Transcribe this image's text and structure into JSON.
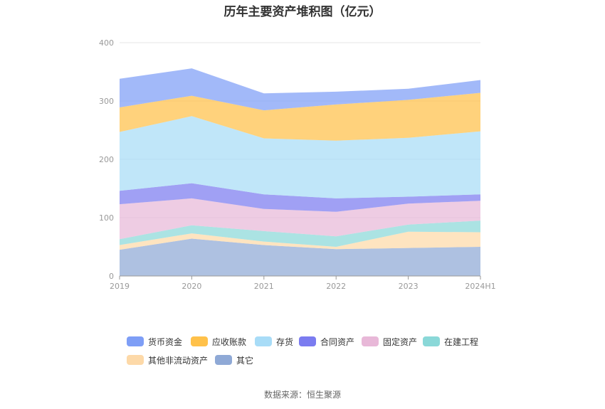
{
  "chart_data": {
    "type": "area",
    "stacked": true,
    "title": "历年主要资产堆积图（亿元）",
    "categories": [
      "2019",
      "2020",
      "2021",
      "2022",
      "2023",
      "2024H1"
    ],
    "ylim": [
      0,
      400
    ],
    "yticks": [
      "0",
      "100",
      "200",
      "300",
      "400"
    ],
    "grid": true,
    "legend_position": "bottom",
    "series": [
      {
        "name": "其它",
        "color": "#8fa9d6",
        "values": [
          45,
          64,
          53,
          46,
          48,
          50
        ]
      },
      {
        "name": "其他非流动资产",
        "color": "#fdd9a8",
        "values": [
          8,
          9,
          6,
          4,
          28,
          25
        ]
      },
      {
        "name": "在建工程",
        "color": "#8ad8d8",
        "values": [
          10,
          14,
          18,
          18,
          12,
          20
        ]
      },
      {
        "name": "固定资产",
        "color": "#e8b8d8",
        "values": [
          60,
          46,
          38,
          42,
          36,
          34
        ]
      },
      {
        "name": "合同资产",
        "color": "#7b7cf0",
        "values": [
          23,
          26,
          25,
          23,
          12,
          11
        ]
      },
      {
        "name": "存货",
        "color": "#a8dcf7",
        "values": [
          101,
          115,
          96,
          99,
          101,
          108
        ]
      },
      {
        "name": "应收账款",
        "color": "#ffc14a",
        "values": [
          42,
          35,
          48,
          62,
          65,
          66
        ]
      },
      {
        "name": "货币资金",
        "color": "#7e9ef6",
        "values": [
          49,
          47,
          29,
          22,
          19,
          22
        ]
      }
    ]
  },
  "legend": {
    "items": [
      {
        "label": "货币资金",
        "color": "#7e9ef6"
      },
      {
        "label": "应收账款",
        "color": "#ffc14a"
      },
      {
        "label": "存货",
        "color": "#a8dcf7"
      },
      {
        "label": "合同资产",
        "color": "#7b7cf0"
      },
      {
        "label": "固定资产",
        "color": "#e8b8d8"
      },
      {
        "label": "在建工程",
        "color": "#8ad8d8"
      },
      {
        "label": "其他非流动资产",
        "color": "#fdd9a8"
      },
      {
        "label": "其它",
        "color": "#8fa9d6"
      }
    ]
  },
  "source": "数据来源：恒生聚源"
}
